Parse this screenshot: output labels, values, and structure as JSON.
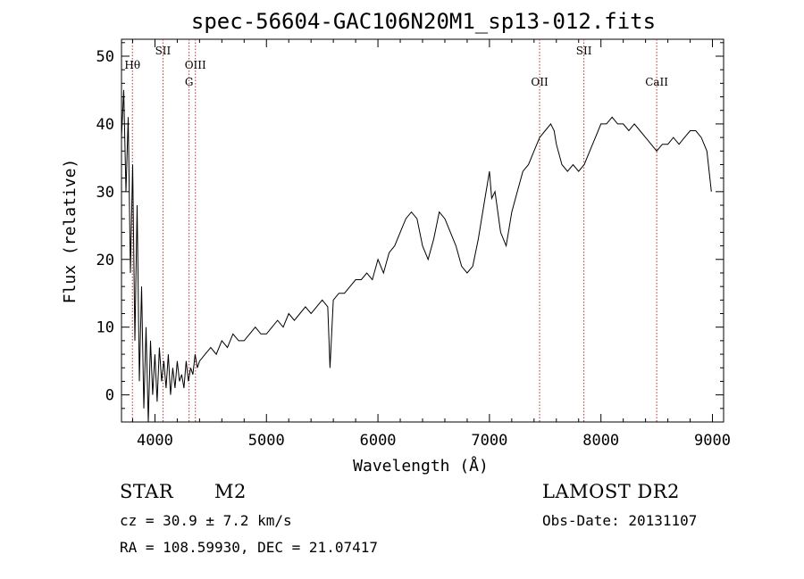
{
  "chart_data": {
    "type": "line",
    "title": "spec-56604-GAC106N20M1_sp13-012.fits",
    "xlabel": "Wavelength (Å)",
    "ylabel": "Flux (relative)",
    "xlim": [
      3700,
      9100
    ],
    "ylim": [
      -4,
      52.5
    ],
    "x_ticks": [
      4000,
      5000,
      6000,
      7000,
      8000,
      9000
    ],
    "y_ticks": [
      0,
      10,
      20,
      30,
      40,
      50
    ],
    "grid": false,
    "series": [
      {
        "x": [
          3700,
          3720,
          3740,
          3760,
          3780,
          3800,
          3820,
          3840,
          3860,
          3880,
          3900,
          3920,
          3940,
          3960,
          3980,
          4000,
          4020,
          4040,
          4060,
          4080,
          4100,
          4120,
          4140,
          4160,
          4180,
          4200,
          4220,
          4240,
          4260,
          4280,
          4300,
          4320,
          4340,
          4360,
          4380,
          4400,
          4450,
          4500,
          4550,
          4600,
          4650,
          4700,
          4750,
          4800,
          4850,
          4900,
          4950,
          5000,
          5050,
          5100,
          5150,
          5200,
          5250,
          5300,
          5350,
          5400,
          5450,
          5500,
          5550,
          5570,
          5600,
          5650,
          5700,
          5750,
          5800,
          5850,
          5900,
          5950,
          6000,
          6050,
          6100,
          6150,
          6200,
          6250,
          6300,
          6350,
          6400,
          6450,
          6500,
          6550,
          6600,
          6650,
          6700,
          6750,
          6800,
          6850,
          6900,
          6950,
          7000,
          7020,
          7050,
          7100,
          7150,
          7200,
          7250,
          7300,
          7350,
          7400,
          7450,
          7500,
          7550,
          7580,
          7600,
          7650,
          7700,
          7750,
          7800,
          7850,
          7900,
          7950,
          8000,
          8050,
          8100,
          8150,
          8200,
          8250,
          8300,
          8350,
          8400,
          8450,
          8500,
          8550,
          8600,
          8650,
          8700,
          8750,
          8800,
          8850,
          8900,
          8950,
          8970,
          8990
        ],
        "values": [
          38,
          45,
          30,
          41,
          18,
          34,
          8,
          28,
          2,
          16,
          -2,
          10,
          -4,
          8,
          0,
          6,
          -1,
          7,
          2,
          5,
          1,
          6,
          0,
          4,
          1,
          5,
          2,
          3,
          1,
          5,
          2,
          4,
          3,
          6,
          4,
          5,
          6,
          7,
          6,
          8,
          7,
          9,
          8,
          8,
          9,
          10,
          9,
          9,
          10,
          11,
          10,
          12,
          11,
          12,
          13,
          12,
          13,
          14,
          13,
          4,
          14,
          15,
          15,
          16,
          17,
          17,
          18,
          17,
          20,
          18,
          21,
          22,
          24,
          26,
          27,
          26,
          22,
          20,
          23,
          27,
          26,
          24,
          22,
          19,
          18,
          19,
          23,
          28,
          33,
          29,
          30,
          24,
          22,
          27,
          30,
          33,
          34,
          36,
          38,
          39,
          40,
          39,
          37,
          34,
          33,
          34,
          33,
          34,
          36,
          38,
          40,
          40,
          41,
          40,
          40,
          39,
          40,
          39,
          38,
          37,
          36,
          37,
          37,
          38,
          37,
          38,
          39,
          39,
          38,
          36,
          33,
          30
        ]
      }
    ],
    "line_markers": [
      {
        "label": "Hθ",
        "x": 3798,
        "row": 1
      },
      {
        "label": "SII",
        "x": 4072,
        "row": 0
      },
      {
        "label": "OIII",
        "x": 4363,
        "row": 1
      },
      {
        "label": "G",
        "x": 4306,
        "row": 2
      },
      {
        "label": "OII",
        "x": 7450,
        "row": 2
      },
      {
        "label": "SII",
        "x": 7847,
        "row": 0
      },
      {
        "label": "CaII",
        "x": 8500,
        "row": 2
      }
    ]
  },
  "info": {
    "object_class": "STAR",
    "subclass": "M2",
    "survey": "LAMOST DR2",
    "cz": "cz = 30.9 ± 7.2 km/s",
    "obs_date": "Obs-Date: 20131107",
    "coords": "RA = 108.59930, DEC =  21.07417"
  },
  "colors": {
    "spectrum": "#000000",
    "marker": "#b03030"
  }
}
